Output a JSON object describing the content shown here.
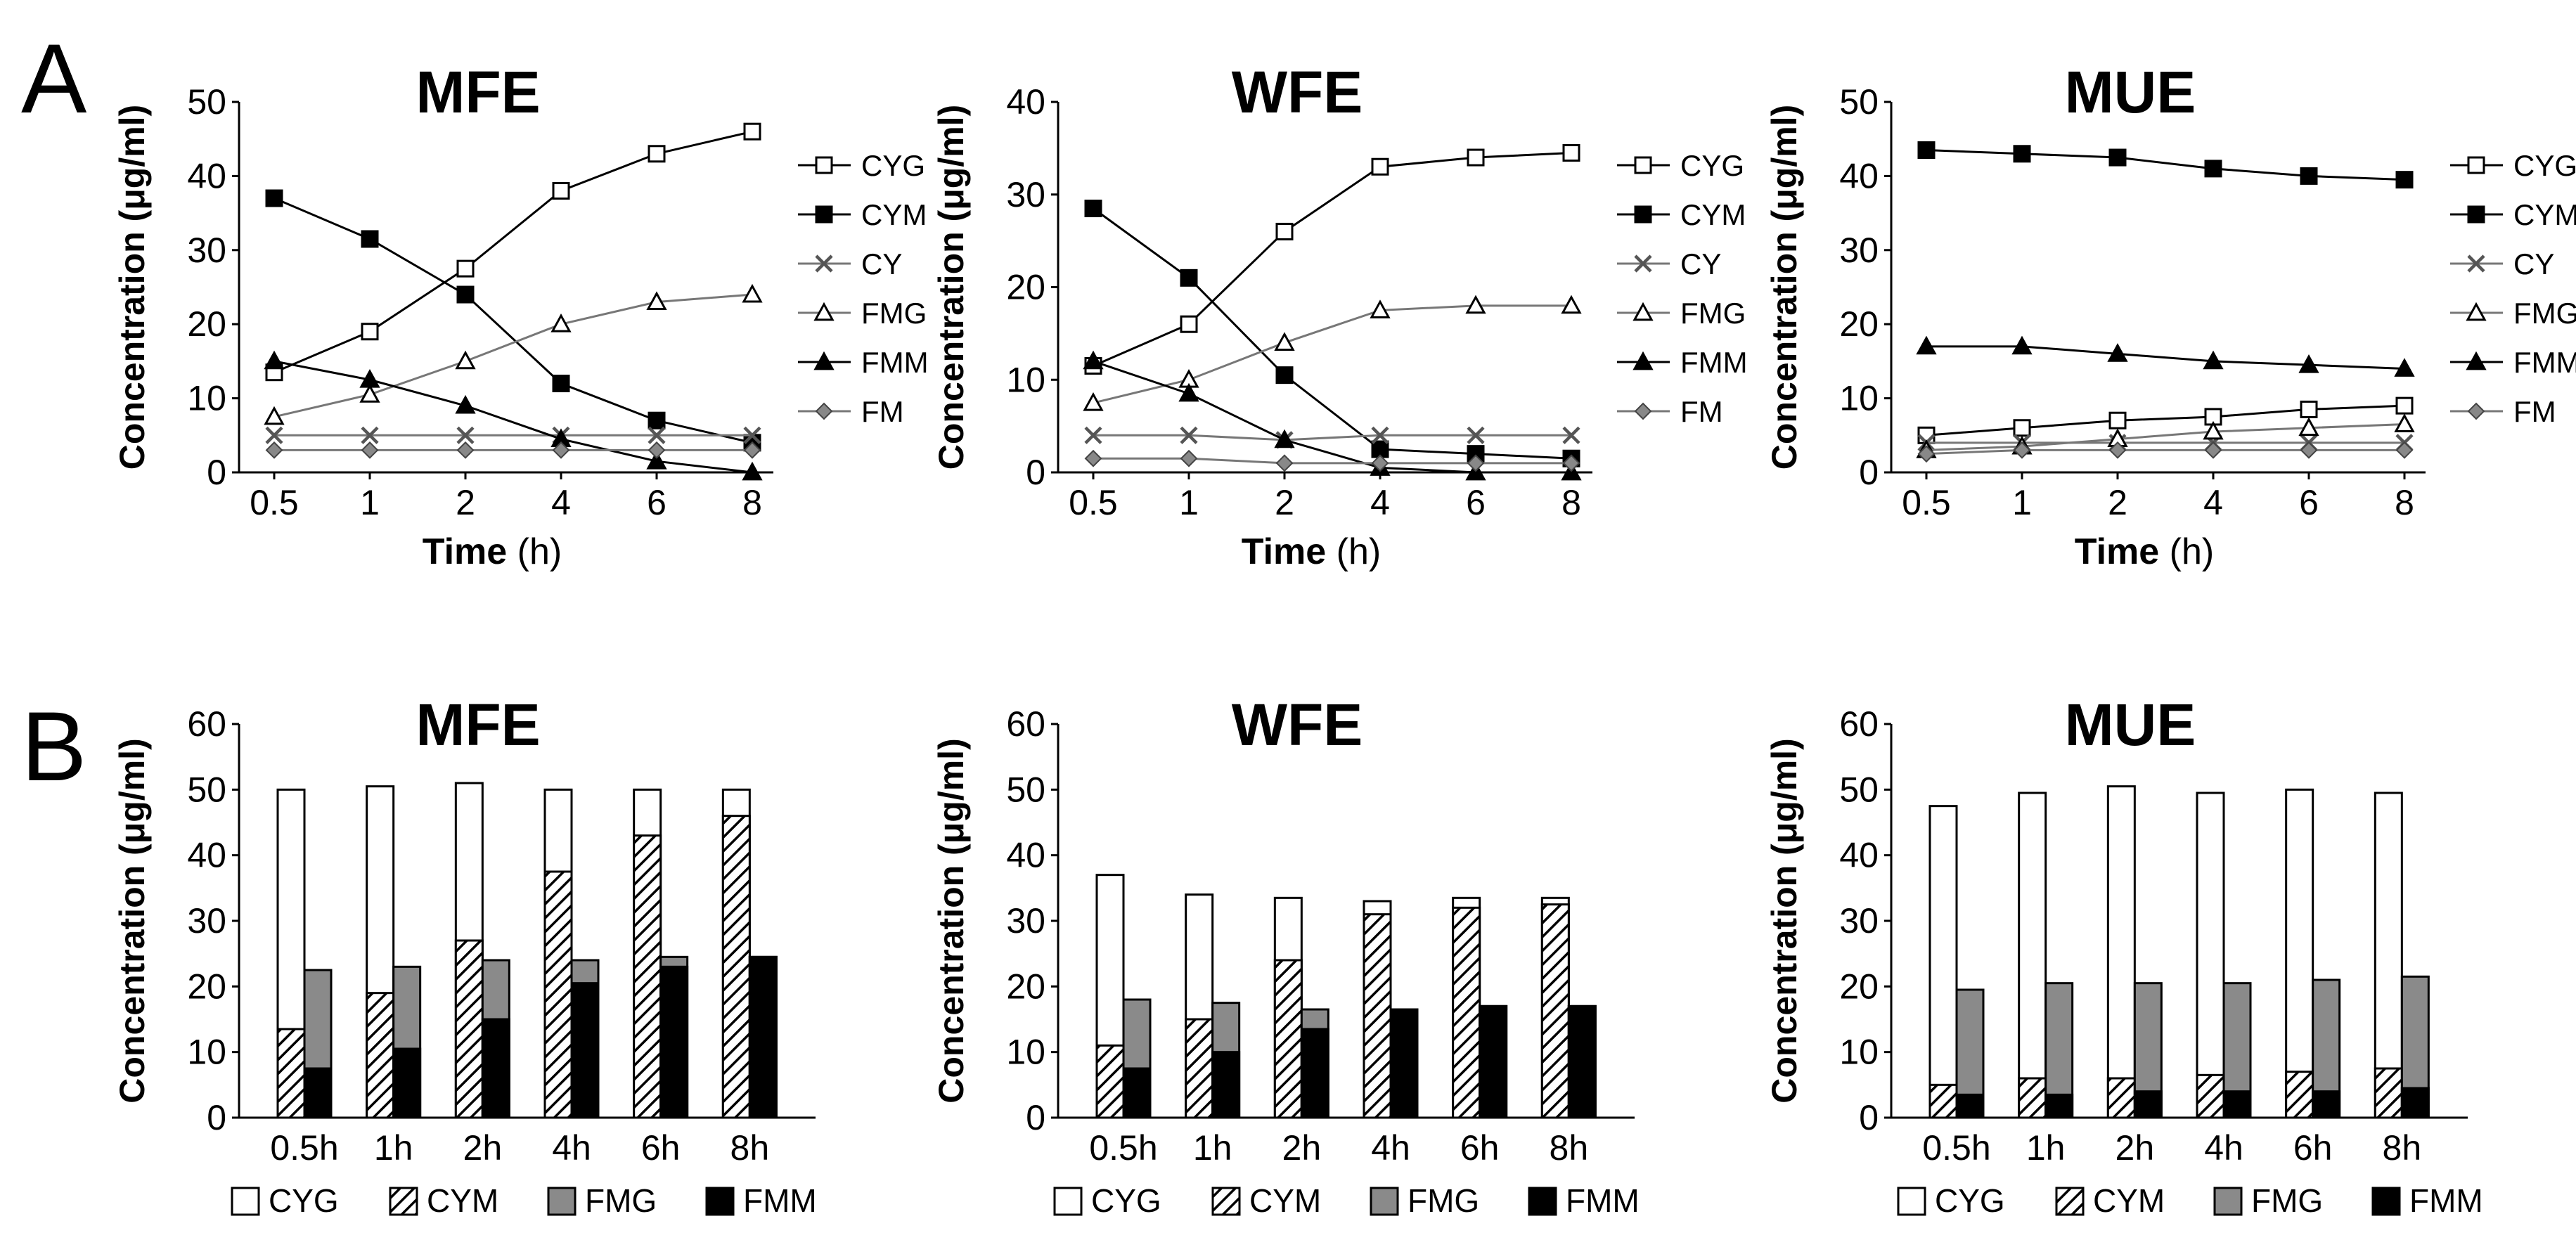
{
  "figure": {
    "panel_a_label": "A",
    "panel_b_label": "B"
  },
  "colors": {
    "CYG": "#ffffff",
    "CYM": "#000000",
    "CY": "#555555",
    "FMG": "#ffffff",
    "FMM": "#000000",
    "FM": "#888888",
    "bar_FMG": "#8a8a8a",
    "bar_FMM": "#000000"
  },
  "chart_data": [
    {
      "type": "line",
      "panel": "A",
      "title": "MFE",
      "xlabel_bold": "Time",
      "xlabel_rest": " (h)",
      "ylabel": "Concentration (μg/ml)",
      "categories": [
        "0.5",
        "1",
        "2",
        "4",
        "6",
        "8"
      ],
      "ylim": [
        0,
        50
      ],
      "yticks": [
        0,
        10,
        20,
        30,
        40,
        50
      ],
      "grid": false,
      "legend_position": "right",
      "series": [
        {
          "name": "CYG",
          "marker": "square-open",
          "values": [
            13.5,
            19,
            27.5,
            38,
            43,
            46
          ]
        },
        {
          "name": "CYM",
          "marker": "square-filled",
          "values": [
            37,
            31.5,
            24,
            12,
            7,
            4
          ]
        },
        {
          "name": "CY",
          "marker": "x",
          "values": [
            5,
            5,
            5,
            5,
            5,
            5
          ]
        },
        {
          "name": "FMG",
          "marker": "triangle-open",
          "values": [
            7.5,
            10.5,
            15,
            20,
            23,
            24
          ]
        },
        {
          "name": "FMM",
          "marker": "triangle-filled",
          "values": [
            15,
            12.5,
            9,
            4.5,
            1.5,
            0
          ]
        },
        {
          "name": "FM",
          "marker": "diamond",
          "values": [
            3,
            3,
            3,
            3,
            3,
            3
          ]
        }
      ]
    },
    {
      "type": "line",
      "panel": "A",
      "title": "WFE",
      "xlabel_bold": "Time",
      "xlabel_rest": " (h)",
      "ylabel": "Concentration (μg/ml)",
      "categories": [
        "0.5",
        "1",
        "2",
        "4",
        "6",
        "8"
      ],
      "ylim": [
        0,
        40
      ],
      "yticks": [
        0,
        10,
        20,
        30,
        40
      ],
      "grid": false,
      "legend_position": "right",
      "series": [
        {
          "name": "CYG",
          "marker": "square-open",
          "values": [
            11.5,
            16,
            26,
            33,
            34,
            34.5
          ]
        },
        {
          "name": "CYM",
          "marker": "square-filled",
          "values": [
            28.5,
            21,
            10.5,
            2.5,
            2,
            1.5
          ]
        },
        {
          "name": "CY",
          "marker": "x",
          "values": [
            4,
            4,
            3.5,
            4,
            4,
            4
          ]
        },
        {
          "name": "FMG",
          "marker": "triangle-open",
          "values": [
            7.5,
            10,
            14,
            17.5,
            18,
            18
          ]
        },
        {
          "name": "FMM",
          "marker": "triangle-filled",
          "values": [
            12,
            8.5,
            3.5,
            0.5,
            0,
            0
          ]
        },
        {
          "name": "FM",
          "marker": "diamond",
          "values": [
            1.5,
            1.5,
            1,
            1,
            1,
            1
          ]
        }
      ]
    },
    {
      "type": "line",
      "panel": "A",
      "title": "MUE",
      "xlabel_bold": "Time",
      "xlabel_rest": " (h)",
      "ylabel": "Concentration (μg/ml)",
      "categories": [
        "0.5",
        "1",
        "2",
        "4",
        "6",
        "8"
      ],
      "ylim": [
        0,
        50
      ],
      "yticks": [
        0,
        10,
        20,
        30,
        40,
        50
      ],
      "grid": false,
      "legend_position": "right",
      "series": [
        {
          "name": "CYG",
          "marker": "square-open",
          "values": [
            5,
            6,
            7,
            7.5,
            8.5,
            9
          ]
        },
        {
          "name": "CYM",
          "marker": "square-filled",
          "values": [
            43.5,
            43,
            42.5,
            41,
            40,
            39.5
          ]
        },
        {
          "name": "CY",
          "marker": "x",
          "values": [
            4,
            4,
            4,
            4,
            4,
            4
          ]
        },
        {
          "name": "FMG",
          "marker": "triangle-open",
          "values": [
            3,
            3.5,
            4.5,
            5.5,
            6,
            6.5
          ]
        },
        {
          "name": "FMM",
          "marker": "triangle-filled",
          "values": [
            17,
            17,
            16,
            15,
            14.5,
            14
          ]
        },
        {
          "name": "FM",
          "marker": "diamond",
          "values": [
            2.5,
            3,
            3,
            3,
            3,
            3
          ]
        }
      ]
    },
    {
      "type": "bar",
      "panel": "B",
      "title": "MFE",
      "ylabel": "Concentration (μg/ml)",
      "categories": [
        "0.5h",
        "1h",
        "2h",
        "4h",
        "6h",
        "8h"
      ],
      "ylim": [
        0,
        60
      ],
      "yticks": [
        0,
        10,
        20,
        30,
        40,
        50,
        60
      ],
      "grid": false,
      "legend_position": "bottom",
      "series": [
        {
          "name": "CYG",
          "fill": "white",
          "values": [
            50,
            50.5,
            51,
            50,
            50,
            50
          ]
        },
        {
          "name": "CYM",
          "fill": "hatch",
          "values": [
            13.5,
            19,
            27,
            37.5,
            43,
            46
          ]
        },
        {
          "name": "FMG",
          "fill": "gray",
          "values": [
            22.5,
            23,
            24,
            24,
            24.5,
            24.5
          ]
        },
        {
          "name": "FMM",
          "fill": "black",
          "values": [
            7.5,
            10.5,
            15,
            20.5,
            23,
            24.5
          ]
        }
      ]
    },
    {
      "type": "bar",
      "panel": "B",
      "title": "WFE",
      "ylabel": "Concentration (μg/ml)",
      "categories": [
        "0.5h",
        "1h",
        "2h",
        "4h",
        "6h",
        "8h"
      ],
      "ylim": [
        0,
        60
      ],
      "yticks": [
        0,
        10,
        20,
        30,
        40,
        50,
        60
      ],
      "grid": false,
      "legend_position": "bottom",
      "series": [
        {
          "name": "CYG",
          "fill": "white",
          "values": [
            37,
            34,
            33.5,
            33,
            33.5,
            33.5
          ]
        },
        {
          "name": "CYM",
          "fill": "hatch",
          "values": [
            11,
            15,
            24,
            31,
            32,
            32.5
          ]
        },
        {
          "name": "FMG",
          "fill": "gray",
          "values": [
            18,
            17.5,
            16.5,
            16.5,
            17,
            17
          ]
        },
        {
          "name": "FMM",
          "fill": "black",
          "values": [
            7.5,
            10,
            13.5,
            16.5,
            17,
            17
          ]
        }
      ]
    },
    {
      "type": "bar",
      "panel": "B",
      "title": "MUE",
      "ylabel": "Concentration (μg/ml)",
      "categories": [
        "0.5h",
        "1h",
        "2h",
        "4h",
        "6h",
        "8h"
      ],
      "ylim": [
        0,
        60
      ],
      "yticks": [
        0,
        10,
        20,
        30,
        40,
        50,
        60
      ],
      "grid": false,
      "legend_position": "bottom",
      "series": [
        {
          "name": "CYG",
          "fill": "white",
          "values": [
            47.5,
            49.5,
            50.5,
            49.5,
            50,
            49.5
          ]
        },
        {
          "name": "CYM",
          "fill": "hatch",
          "values": [
            5,
            6,
            6,
            6.5,
            7,
            7.5
          ]
        },
        {
          "name": "FMG",
          "fill": "gray",
          "values": [
            19.5,
            20.5,
            20.5,
            20.5,
            21,
            21.5
          ]
        },
        {
          "name": "FMM",
          "fill": "black",
          "values": [
            3.5,
            3.5,
            4,
            4,
            4,
            4.5
          ]
        }
      ]
    }
  ]
}
